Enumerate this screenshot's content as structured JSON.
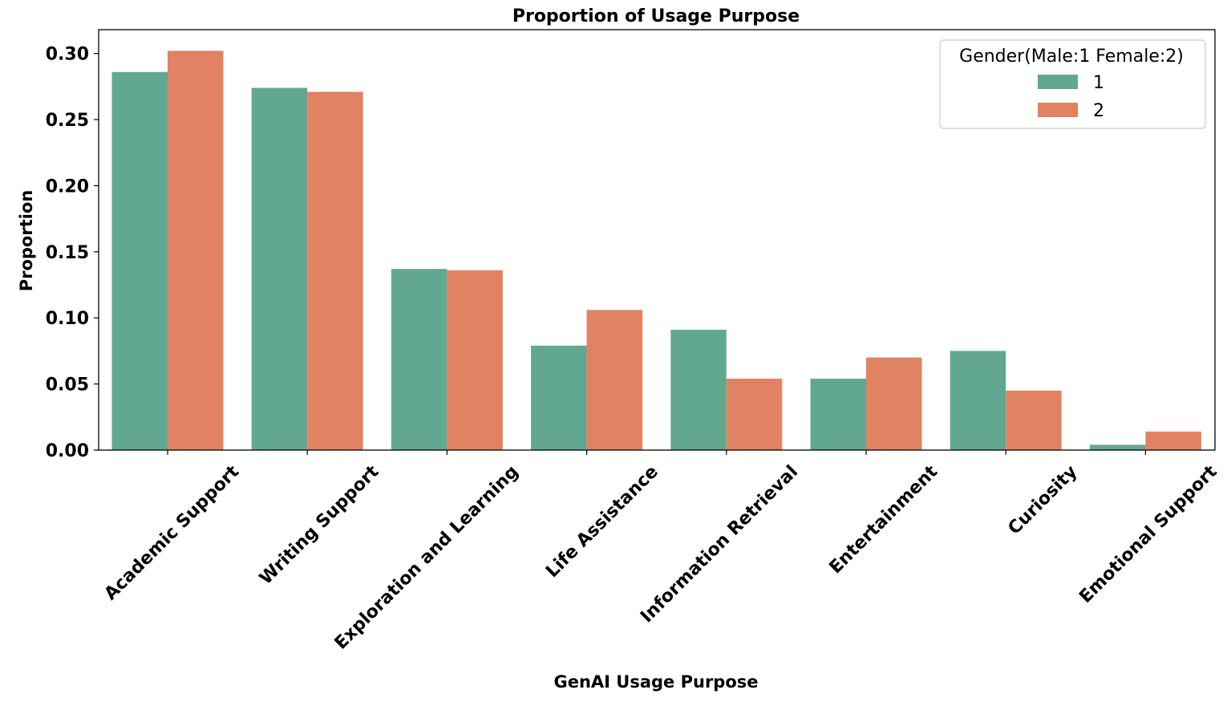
{
  "chart_data": {
    "type": "bar",
    "title": "Proportion of Usage Purpose",
    "xlabel": "GenAI Usage Purpose",
    "ylabel": "Proportion",
    "ylim": [
      0,
      0.318
    ],
    "yticks": [
      0.0,
      0.05,
      0.1,
      0.15,
      0.2,
      0.25,
      0.3
    ],
    "ytick_labels": [
      "0.00",
      "0.05",
      "0.10",
      "0.15",
      "0.20",
      "0.25",
      "0.30"
    ],
    "grid": false,
    "legend_position": "top-right",
    "legend_title": "Gender(Male:1 Female:2)",
    "categories": [
      "Academic Support",
      "Writing Support",
      "Exploration and Learning",
      "Life Assistance",
      "Information Retrieval",
      "Entertainment",
      "Curiosity",
      "Emotional Support"
    ],
    "series": [
      {
        "name": "1",
        "color": "#62a890",
        "values": [
          0.286,
          0.274,
          0.137,
          0.079,
          0.091,
          0.054,
          0.075,
          0.004
        ]
      },
      {
        "name": "2",
        "color": "#e18263",
        "values": [
          0.302,
          0.271,
          0.136,
          0.106,
          0.054,
          0.07,
          0.045,
          0.014
        ]
      }
    ]
  }
}
